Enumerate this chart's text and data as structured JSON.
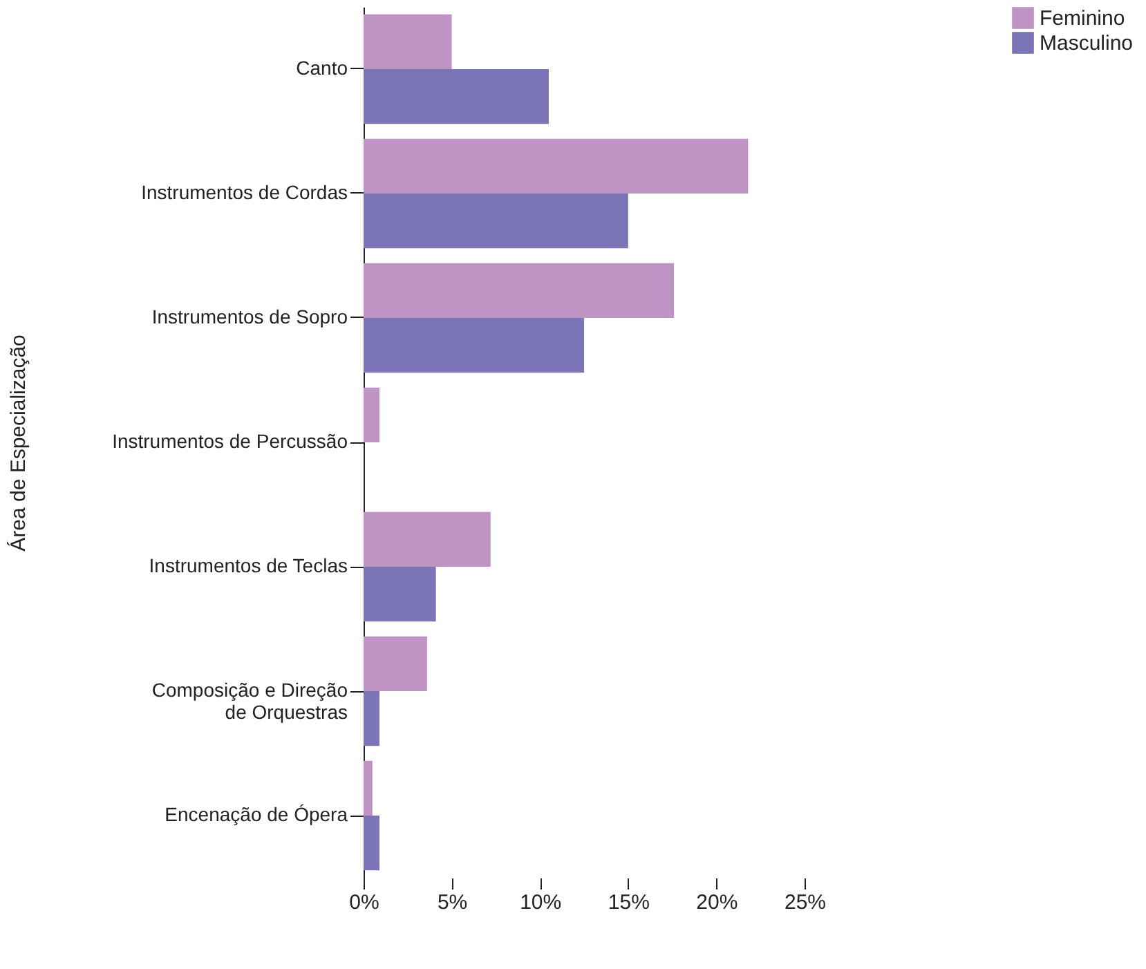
{
  "chart_data": {
    "type": "bar",
    "orientation": "horizontal",
    "ylabel": "Área de Especialização",
    "categories": [
      "Canto",
      "Instrumentos de Cordas",
      "Instrumentos de Sopro",
      "Instrumentos de Percussão",
      "Instrumentos de Teclas",
      "Composição e Direção\nde Orquestras",
      "Encenação de Ópera"
    ],
    "series": [
      {
        "name": "Feminino",
        "color": "#bf94c4",
        "values": [
          5.0,
          21.8,
          17.6,
          0.9,
          7.2,
          3.6,
          0.5
        ]
      },
      {
        "name": "Masculino",
        "color": "#7b74b6",
        "values": [
          10.5,
          15.0,
          12.5,
          0,
          4.1,
          0.9,
          0.9
        ]
      }
    ],
    "xlim": [
      0,
      25
    ],
    "xticks": [
      {
        "value": 0,
        "label": "0%"
      },
      {
        "value": 5,
        "label": "5%"
      },
      {
        "value": 10,
        "label": "10%"
      },
      {
        "value": 15,
        "label": "15%"
      },
      {
        "value": 20,
        "label": "20%"
      },
      {
        "value": 25,
        "label": "25%"
      }
    ],
    "grid": false,
    "legend": "top right"
  }
}
